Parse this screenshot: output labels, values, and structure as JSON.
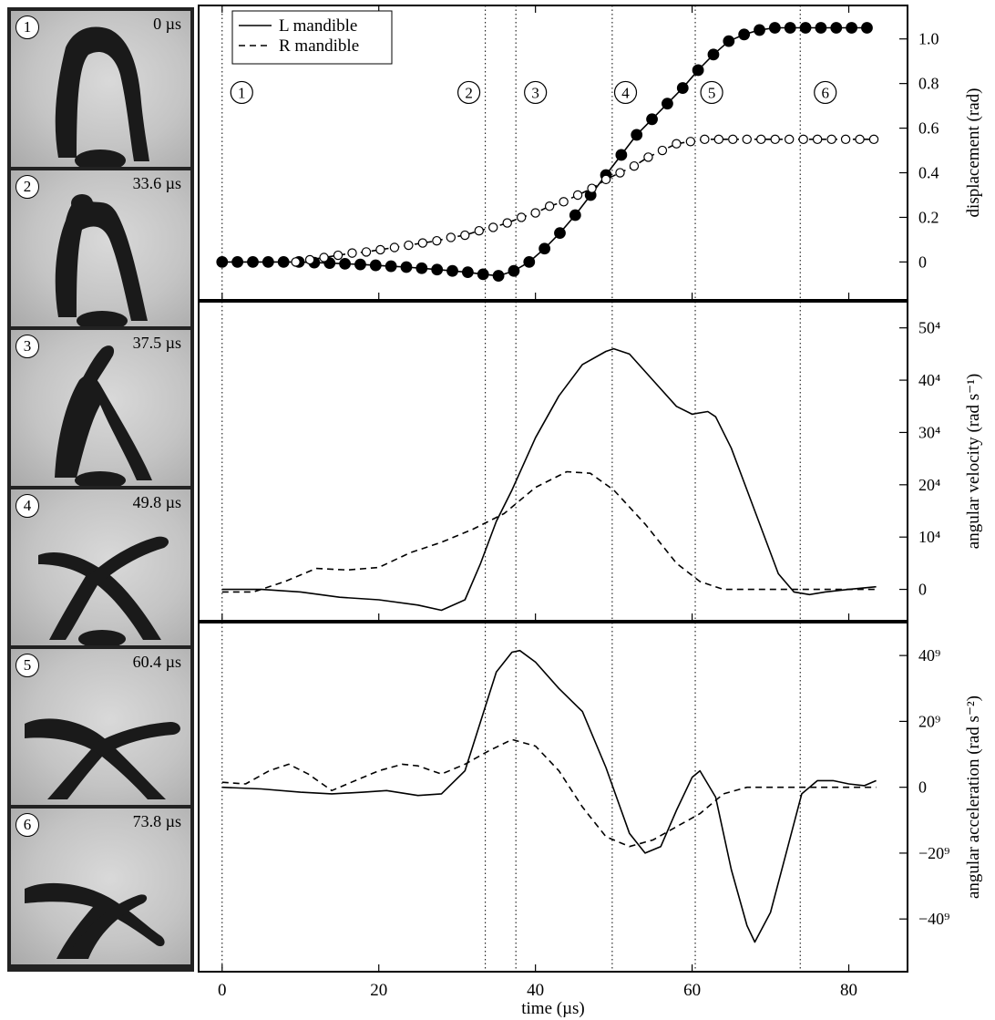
{
  "frames": [
    {
      "num": "1",
      "time": "0 µs"
    },
    {
      "num": "2",
      "time": "33.6 µs"
    },
    {
      "num": "3",
      "time": "37.5 µs"
    },
    {
      "num": "4",
      "time": "49.8 µs"
    },
    {
      "num": "5",
      "time": "60.4 µs"
    },
    {
      "num": "6",
      "time": "73.8 µs"
    }
  ],
  "chart_data": [
    {
      "type": "line",
      "ylabel": "displacement (rad)",
      "xlabel": "",
      "xlim": [
        -3,
        87.5
      ],
      "ylim": [
        -0.17,
        1.15
      ],
      "yticks": [
        0,
        0.2,
        0.4,
        0.6,
        0.8,
        1.0
      ],
      "yticklabels": [
        "0",
        "0.2",
        "0.4",
        "0.6",
        "0.8",
        "1.0"
      ],
      "grid": false,
      "legend": {
        "position": "top-left",
        "entries": [
          "L mandible",
          "R mandible"
        ]
      },
      "annotations": [
        {
          "label": "1",
          "x": 2.5,
          "y": 0.76
        },
        {
          "label": "2",
          "x": 31.5,
          "y": 0.76
        },
        {
          "label": "3",
          "x": 40,
          "y": 0.76
        },
        {
          "label": "4",
          "x": 51.5,
          "y": 0.76
        },
        {
          "label": "5",
          "x": 62.5,
          "y": 0.76
        },
        {
          "label": "6",
          "x": 77,
          "y": 0.76
        }
      ],
      "vlines": [
        0,
        33.6,
        37.5,
        49.8,
        60.4,
        73.8
      ],
      "series": [
        {
          "name": "L mandible",
          "style": "solid",
          "marker": "filled-circle",
          "x": [
            0,
            1.96,
            3.92,
            5.88,
            7.84,
            9.8,
            11.76,
            13.72,
            15.68,
            17.64,
            19.6,
            21.56,
            23.52,
            25.48,
            27.44,
            29.4,
            31.36,
            33.32,
            35.28,
            37.24,
            39.2,
            41.16,
            43.12,
            45.08,
            47.04,
            49.0,
            50.96,
            52.92,
            54.88,
            56.84,
            58.8,
            60.76,
            62.72,
            64.68,
            66.64,
            68.6,
            70.56,
            72.52,
            74.48,
            76.44,
            78.4,
            80.36,
            82.32
          ],
          "values": [
            0,
            0,
            0,
            0,
            0,
            0,
            -0.003,
            -0.005,
            -0.008,
            -0.011,
            -0.015,
            -0.019,
            -0.023,
            -0.028,
            -0.034,
            -0.04,
            -0.046,
            -0.055,
            -0.062,
            -0.04,
            0.0,
            0.06,
            0.13,
            0.21,
            0.3,
            0.39,
            0.48,
            0.57,
            0.64,
            0.71,
            0.78,
            0.86,
            0.93,
            0.99,
            1.02,
            1.04,
            1.05,
            1.05,
            1.05,
            1.05,
            1.05,
            1.05,
            1.05
          ]
        },
        {
          "name": "R mandible",
          "style": "dashed",
          "marker": "open-circle",
          "x": [
            9.4,
            11.2,
            13.0,
            14.8,
            16.6,
            18.4,
            20.2,
            22.0,
            23.8,
            25.6,
            27.4,
            29.2,
            31.0,
            32.8,
            34.6,
            36.4,
            38.2,
            40.0,
            41.8,
            43.6,
            45.4,
            47.2,
            49.0,
            50.8,
            52.6,
            54.4,
            56.2,
            58.0,
            59.8,
            61.6,
            63.4,
            65.2,
            67.0,
            68.8,
            70.6,
            72.4,
            74.2,
            76.0,
            77.8,
            79.6,
            81.4,
            83.2
          ],
          "values": [
            0.0,
            0.01,
            0.02,
            0.03,
            0.04,
            0.045,
            0.055,
            0.065,
            0.075,
            0.085,
            0.095,
            0.11,
            0.12,
            0.14,
            0.155,
            0.175,
            0.2,
            0.22,
            0.25,
            0.27,
            0.3,
            0.33,
            0.37,
            0.4,
            0.43,
            0.47,
            0.5,
            0.53,
            0.54,
            0.55,
            0.55,
            0.55,
            0.55,
            0.55,
            0.55,
            0.55,
            0.55,
            0.55,
            0.55,
            0.55,
            0.55,
            0.55
          ]
        }
      ]
    },
    {
      "type": "line",
      "ylabel": "angular velocity (rad s⁻¹)",
      "xlabel": "",
      "xlim": [
        -3,
        87.5
      ],
      "ylim": [
        -60000,
        550000
      ],
      "yticks": [
        0,
        100000,
        200000,
        300000,
        400000,
        500000
      ],
      "yticklabels": [
        "0",
        "10⁴",
        "20⁴",
        "30⁴",
        "40⁴",
        "50⁴"
      ],
      "grid": false,
      "vlines": [
        0,
        33.6,
        37.5,
        49.8,
        60.4,
        73.8
      ],
      "series": [
        {
          "name": "L mandible",
          "style": "solid",
          "x": [
            0,
            5,
            10,
            15,
            20,
            25,
            28,
            31,
            33,
            35,
            37,
            40,
            43,
            46,
            49,
            50,
            52,
            55,
            58,
            60,
            62,
            63,
            65,
            68,
            71,
            73,
            75,
            77,
            80,
            83.5
          ],
          "values": [
            0,
            0,
            -5000,
            -15000,
            -20000,
            -30000,
            -40000,
            -20000,
            50000,
            130000,
            190000,
            290000,
            370000,
            430000,
            455000,
            460000,
            450000,
            400000,
            350000,
            335000,
            340000,
            330000,
            270000,
            150000,
            30000,
            -5000,
            -10000,
            -5000,
            0,
            5000
          ]
        },
        {
          "name": "R mandible",
          "style": "dashed",
          "x": [
            0,
            4,
            8,
            12,
            16,
            20,
            24,
            28,
            32,
            36,
            40,
            44,
            47,
            50,
            54,
            58,
            61,
            64,
            68,
            72,
            76,
            80,
            83.5
          ],
          "values": [
            -5000,
            -5000,
            15000,
            40000,
            37000,
            42000,
            70000,
            90000,
            115000,
            145000,
            195000,
            225000,
            222000,
            190000,
            125000,
            50000,
            15000,
            0,
            0,
            0,
            0,
            0,
            0
          ]
        }
      ]
    },
    {
      "type": "line",
      "ylabel": "angular acceleration (rad s⁻²)",
      "xlabel": "time (µs)",
      "xlim": [
        -3,
        87.5
      ],
      "ylim": [
        -560,
        500
      ],
      "yticks": [
        -400,
        -200,
        0,
        200,
        400
      ],
      "yticklabels": [
        "−40⁹",
        "−20⁹",
        "0",
        "20⁹",
        "40⁹"
      ],
      "xticks": [
        0,
        20,
        40,
        60,
        80
      ],
      "xticklabels": [
        "0",
        "20",
        "40",
        "60",
        "80"
      ],
      "grid": false,
      "vlines": [
        0,
        33.6,
        37.5,
        49.8,
        60.4,
        73.8
      ],
      "series": [
        {
          "name": "L mandible",
          "style": "solid",
          "x": [
            0,
            5,
            10,
            14,
            18,
            21,
            25,
            28,
            31,
            33,
            35,
            37,
            38,
            40,
            43,
            46,
            49,
            52,
            54,
            56,
            58,
            60,
            61,
            63,
            65,
            67,
            68,
            70,
            72,
            74,
            76,
            78,
            80,
            82,
            83.5
          ],
          "values": [
            0,
            -5,
            -15,
            -20,
            -15,
            -10,
            -25,
            -20,
            50,
            200,
            350,
            410,
            415,
            380,
            300,
            230,
            60,
            -140,
            -200,
            -180,
            -70,
            30,
            50,
            -30,
            -250,
            -420,
            -470,
            -380,
            -200,
            -20,
            20,
            20,
            10,
            5,
            20
          ]
        },
        {
          "name": "R mandible",
          "style": "dashed",
          "x": [
            0,
            3,
            6,
            8.5,
            11,
            14,
            17,
            20,
            23,
            25,
            28,
            31,
            34,
            37,
            40,
            43,
            46,
            49,
            52,
            55,
            58,
            61,
            64,
            67,
            70,
            75,
            80,
            83.5
          ],
          "values": [
            15,
            10,
            50,
            70,
            40,
            -10,
            20,
            50,
            70,
            65,
            40,
            70,
            110,
            145,
            125,
            50,
            -60,
            -150,
            -180,
            -160,
            -120,
            -80,
            -20,
            0,
            0,
            0,
            0,
            0
          ]
        }
      ]
    }
  ]
}
